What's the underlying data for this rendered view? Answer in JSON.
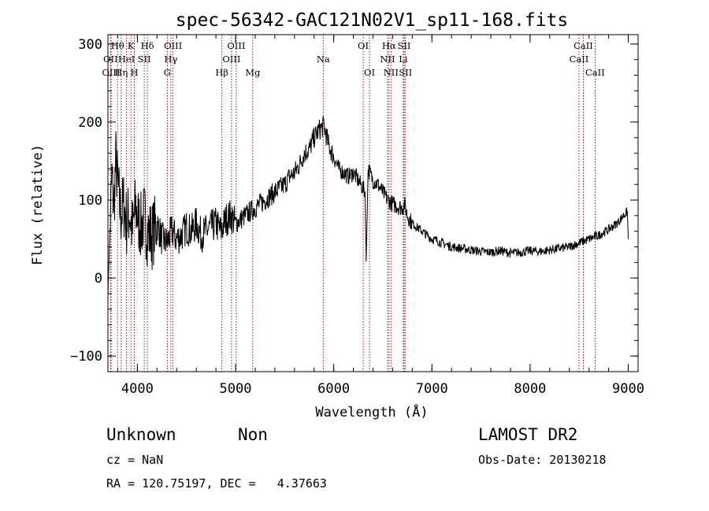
{
  "chart_data": {
    "type": "line",
    "title": "spec-56342-GAC121N02V1_sp11-168.fits",
    "xlabel": "Wavelength (Å)",
    "ylabel": "Flux (relative)",
    "xlim": [
      3700,
      9100
    ],
    "ylim": [
      -120,
      312
    ],
    "xticks": [
      4000,
      5000,
      6000,
      7000,
      8000,
      9000
    ],
    "yticks": [
      -100,
      0,
      100,
      200,
      300
    ],
    "grid": false,
    "line_color": "#000000",
    "marker_color": "#8b0000",
    "series": [
      {
        "x": [
          3700,
          3720,
          3740,
          3760,
          3780,
          3800,
          3830,
          3860,
          3890,
          3920,
          3950,
          3980,
          4010,
          4040,
          4070,
          4100,
          4150,
          4200,
          4250,
          4300,
          4350,
          4400,
          4450,
          4500,
          4550,
          4600,
          4650,
          4700,
          4750,
          4800,
          4850,
          4900,
          4950,
          5000,
          5050,
          5100,
          5150,
          5200,
          5250,
          5300,
          5350,
          5400,
          5450,
          5500,
          5550,
          5600,
          5650,
          5700,
          5750,
          5800,
          5850,
          5900,
          5920,
          5950,
          6000,
          6050,
          6100,
          6150,
          6200,
          6250,
          6300,
          6320,
          6330,
          6350,
          6400,
          6450,
          6500,
          6550,
          6600,
          6650,
          6700,
          6720,
          6750,
          6800,
          6850,
          6900,
          6950,
          7000,
          7050,
          7100,
          7200,
          7300,
          7400,
          7500,
          7600,
          7700,
          7800,
          7900,
          8000,
          8100,
          8200,
          8300,
          8400,
          8500,
          8600,
          8700,
          8800,
          8900,
          8950,
          8990,
          9000
        ],
        "y": [
          -20,
          60,
          130,
          90,
          150,
          120,
          80,
          95,
          70,
          85,
          60,
          90,
          75,
          65,
          80,
          60,
          55,
          70,
          50,
          45,
          60,
          50,
          55,
          65,
          60,
          70,
          55,
          60,
          65,
          70,
          60,
          75,
          80,
          70,
          75,
          80,
          85,
          90,
          95,
          100,
          105,
          110,
          115,
          120,
          130,
          135,
          145,
          160,
          165,
          180,
          190,
          195,
          185,
          170,
          155,
          140,
          135,
          130,
          135,
          125,
          115,
          110,
          20,
          140,
          125,
          120,
          110,
          100,
          95,
          92,
          90,
          95,
          80,
          70,
          65,
          60,
          55,
          50,
          48,
          45,
          40,
          38,
          36,
          34,
          33,
          35,
          32,
          33,
          35,
          34,
          36,
          38,
          40,
          45,
          50,
          55,
          62,
          72,
          80,
          85,
          50
        ]
      }
    ],
    "lines": [
      {
        "name": "OII",
        "wl": 3727,
        "row": 1
      },
      {
        "name": "Hθ",
        "wl": 3798,
        "row": 0
      },
      {
        "name": "OIII",
        "wl": 3732,
        "row": 2
      },
      {
        "name": "Hη",
        "wl": 3835,
        "row": 2
      },
      {
        "name": "HeI",
        "wl": 3889,
        "row": 1
      },
      {
        "name": "K",
        "wl": 3934,
        "row": 0
      },
      {
        "name": "SII",
        "wl": 4070,
        "row": 1
      },
      {
        "name": "H",
        "wl": 3969,
        "row": 2
      },
      {
        "name": "Hδ",
        "wl": 4102,
        "row": 0
      },
      {
        "name": "OIII",
        "wl": 4363,
        "row": 0
      },
      {
        "name": "Hγ",
        "wl": 4341,
        "row": 1
      },
      {
        "name": "G",
        "wl": 4305,
        "row": 2
      },
      {
        "name": "Hβ",
        "wl": 4861,
        "row": 2
      },
      {
        "name": "OIII",
        "wl": 5007,
        "row": 0
      },
      {
        "name": "OIII",
        "wl": 4959,
        "row": 1
      },
      {
        "name": "Mg",
        "wl": 5175,
        "row": 2
      },
      {
        "name": "Na",
        "wl": 5893,
        "row": 1
      },
      {
        "name": "OI",
        "wl": 6300,
        "row": 0
      },
      {
        "name": "OI",
        "wl": 6364,
        "row": 2
      },
      {
        "name": "Hα",
        "wl": 6563,
        "row": 0
      },
      {
        "name": "NII",
        "wl": 6548,
        "row": 1
      },
      {
        "name": "NII",
        "wl": 6583,
        "row": 2
      },
      {
        "name": "SII",
        "wl": 6717,
        "row": 0
      },
      {
        "name": "Li",
        "wl": 6708,
        "row": 1
      },
      {
        "name": "SII",
        "wl": 6731,
        "row": 2
      },
      {
        "name": "CaII",
        "wl": 8542,
        "row": 0
      },
      {
        "name": "CaII",
        "wl": 8498,
        "row": 1
      },
      {
        "name": "CaII",
        "wl": 8662,
        "row": 2
      }
    ]
  },
  "info": {
    "object": "Unknown",
    "class": "Non",
    "survey": "LAMOST DR2",
    "redshift": "cz = NaN",
    "obs_date": "Obs-Date: 20130218",
    "coords": "RA = 120.75197, DEC =   4.37663"
  }
}
